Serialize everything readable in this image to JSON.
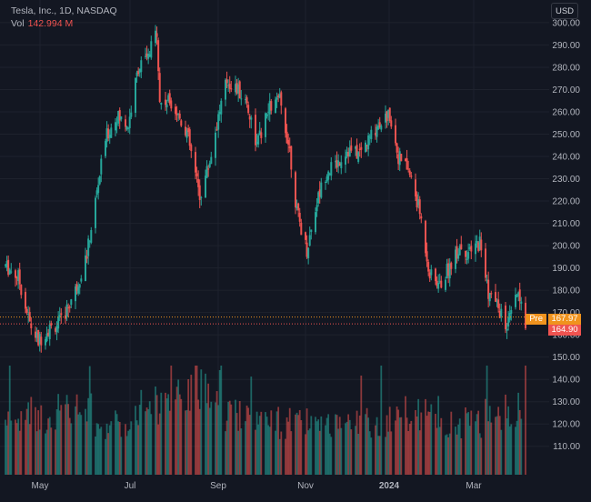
{
  "legend": {
    "symbol": "Tesla, Inc., 1D, NASDAQ",
    "vol_label": "Vol",
    "vol_value": "142.994 M"
  },
  "currency_button": "USD",
  "price_tags": {
    "pre_label": "Pre",
    "pre_value": "167.97",
    "last_value": "164.90"
  },
  "colors": {
    "background": "#131722",
    "up": "#26a69a",
    "down": "#ef5350",
    "pre_market": "#f0931e",
    "grid": "#1e222d",
    "text": "#b2b5be"
  },
  "chart_data": {
    "type": "candlestick",
    "ylim": [
      105,
      302
    ],
    "y_ticks": [
      "110.00",
      "120.00",
      "130.00",
      "140.00",
      "150.00",
      "160.00",
      "170.00",
      "180.00",
      "190.00",
      "200.00",
      "210.00",
      "220.00",
      "230.00",
      "240.00",
      "250.00",
      "260.00",
      "270.00",
      "280.00",
      "290.00",
      "300.00"
    ],
    "x_labels": [
      "May",
      "Jul",
      "Sep",
      "Nov",
      "2024",
      "Mar"
    ],
    "pre_market_price": 167.97,
    "last_price": 164.9,
    "grid": true,
    "volume_overlay": true,
    "price_path": [
      [
        "2023-04-03",
        191
      ],
      [
        "2023-04-12",
        186
      ],
      [
        "2023-04-20",
        165
      ],
      [
        "2023-04-26",
        157
      ],
      [
        "2023-05-02",
        162
      ],
      [
        "2023-05-12",
        166
      ],
      [
        "2023-05-22",
        180
      ],
      [
        "2023-05-30",
        196
      ],
      [
        "2023-06-06",
        224
      ],
      [
        "2023-06-12",
        248
      ],
      [
        "2023-06-20",
        258
      ],
      [
        "2023-06-28",
        254
      ],
      [
        "2023-07-05",
        280
      ],
      [
        "2023-07-12",
        284
      ],
      [
        "2023-07-18",
        297
      ],
      [
        "2023-07-20",
        264
      ],
      [
        "2023-07-28",
        265
      ],
      [
        "2023-08-08",
        251
      ],
      [
        "2023-08-17",
        222
      ],
      [
        "2023-08-24",
        238
      ],
      [
        "2023-08-30",
        258
      ],
      [
        "2023-09-05",
        274
      ],
      [
        "2023-09-12",
        270
      ],
      [
        "2023-09-19",
        264
      ],
      [
        "2023-09-26",
        245
      ],
      [
        "2023-10-05",
        262
      ],
      [
        "2023-10-12",
        265
      ],
      [
        "2023-10-19",
        243
      ],
      [
        "2023-10-24",
        215
      ],
      [
        "2023-10-31",
        198
      ],
      [
        "2023-11-07",
        220
      ],
      [
        "2023-11-14",
        234
      ],
      [
        "2023-11-20",
        236
      ],
      [
        "2023-11-28",
        243
      ],
      [
        "2023-12-06",
        241
      ],
      [
        "2023-12-12",
        246
      ],
      [
        "2023-12-20",
        255
      ],
      [
        "2023-12-28",
        259
      ],
      [
        "2024-01-03",
        240
      ],
      [
        "2024-01-10",
        234
      ],
      [
        "2024-01-18",
        215
      ],
      [
        "2024-01-25",
        187
      ],
      [
        "2024-02-01",
        182
      ],
      [
        "2024-02-08",
        191
      ],
      [
        "2024-02-15",
        200
      ],
      [
        "2024-02-22",
        196
      ],
      [
        "2024-02-29",
        202
      ],
      [
        "2024-03-06",
        179
      ],
      [
        "2024-03-13",
        172
      ],
      [
        "2024-03-19",
        163
      ],
      [
        "2024-03-26",
        178
      ],
      [
        "2024-04-01",
        166
      ]
    ],
    "volume": {
      "scale_note": "relative daily volume, shown as overlay",
      "relative_levels": [
        0.55,
        0.62,
        0.48,
        0.7,
        0.85,
        0.6,
        0.5,
        0.45,
        0.52,
        0.58,
        0.5,
        0.62
      ]
    }
  }
}
